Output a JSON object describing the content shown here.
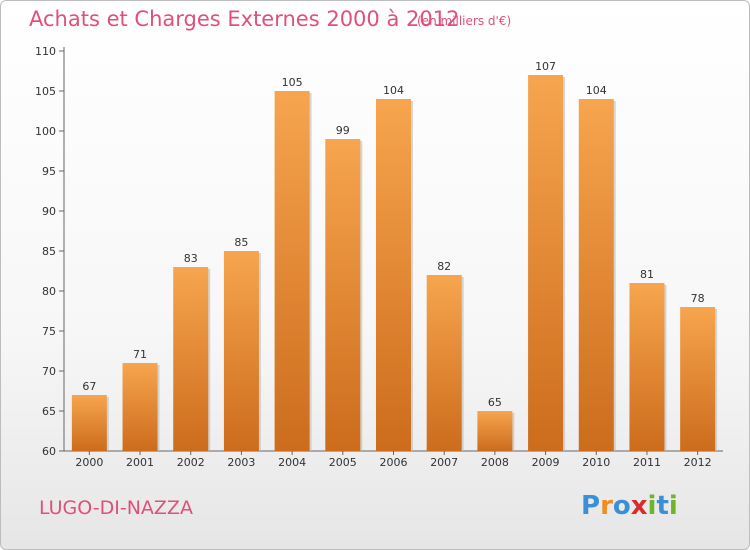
{
  "header": {
    "title": "Achats et Charges Externes 2000 à 2012",
    "subtitle": "(en milliers d'€)"
  },
  "footer": {
    "place": "LUGO-DI-NAZZA",
    "brand_letters": [
      "P",
      "r",
      "o",
      "x",
      "i",
      "t",
      "i"
    ]
  },
  "colors": {
    "bar_light": "#f7a54f",
    "bar_dark": "#cc6c1c",
    "title": "#e0507a",
    "brand": [
      "#3a8fd6",
      "#f28c1e",
      "#3a8fd6",
      "#d92d2d",
      "#6fb52c",
      "#3a8fd6",
      "#6fb52c"
    ]
  },
  "chart_data": {
    "type": "bar",
    "title": "Achats et Charges Externes 2000 à 2012",
    "subtitle": "(en milliers d'€)",
    "categories": [
      "2000",
      "2001",
      "2002",
      "2003",
      "2004",
      "2005",
      "2006",
      "2007",
      "2008",
      "2009",
      "2010",
      "2011",
      "2012"
    ],
    "values": [
      67,
      71,
      83,
      85,
      105,
      99,
      104,
      82,
      65,
      107,
      104,
      81,
      78
    ],
    "ylim": [
      60,
      110
    ],
    "yticks": [
      60,
      65,
      70,
      75,
      80,
      85,
      90,
      95,
      100,
      105,
      110
    ],
    "grid": false,
    "legend": "none"
  }
}
